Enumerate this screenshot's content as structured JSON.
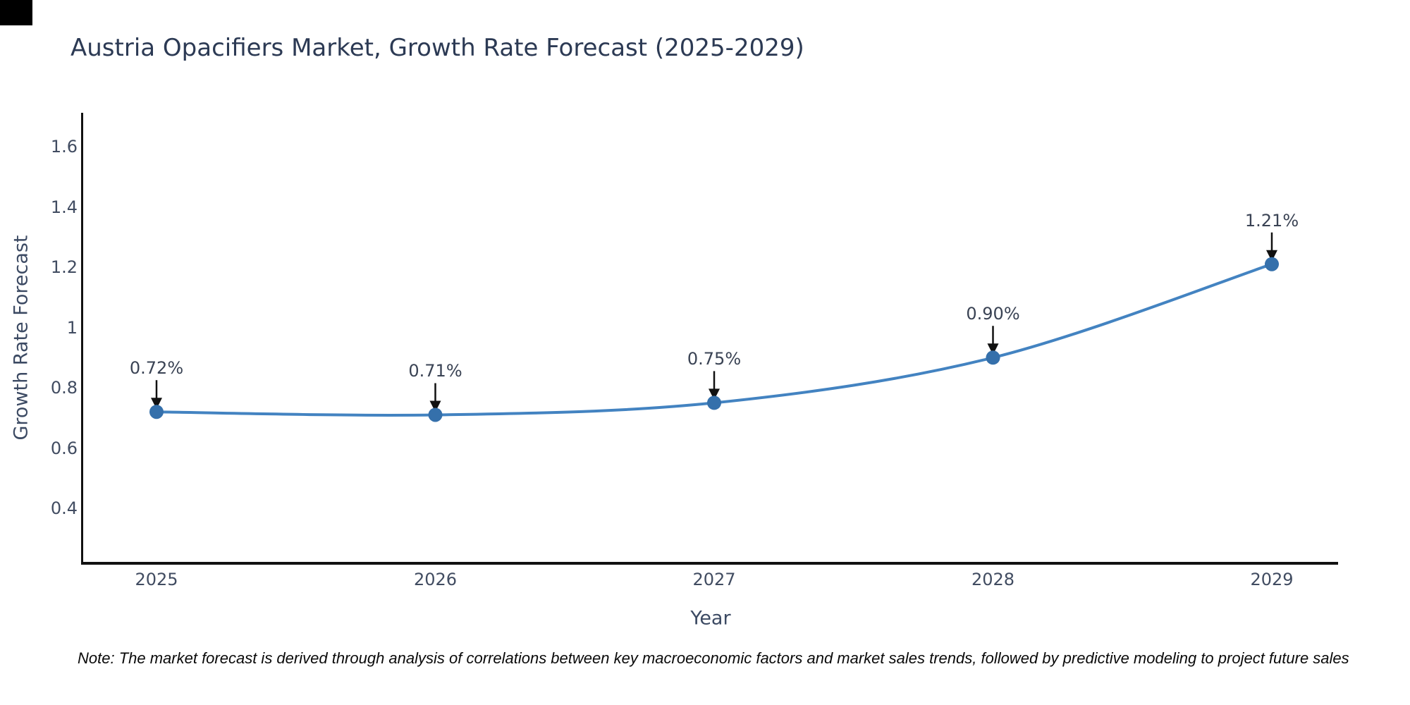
{
  "title": {
    "text": "Austria Opacifiers Market, Growth Rate Forecast (2025-2029)"
  },
  "chart_data": {
    "type": "line",
    "line_shape": "spline",
    "markers": true,
    "grid": false,
    "legend_position": "none",
    "title": "Austria Opacifiers Market, Growth Rate Forecast (2025-2029)",
    "xlabel": "Year",
    "ylabel": "Growth Rate Forecast",
    "x": [
      2025,
      2026,
      2027,
      2028,
      2029
    ],
    "x_labels": [
      "2025",
      "2026",
      "2027",
      "2028",
      "2029"
    ],
    "series": [
      {
        "name": "Growth Rate Forecast",
        "values": [
          0.72,
          0.71,
          0.75,
          0.9,
          1.21
        ],
        "labels": [
          "0.72%",
          "0.71%",
          "0.75%",
          "0.90%",
          "1.21%"
        ]
      }
    ],
    "ylim": [
      0.22,
      1.71
    ],
    "ytick_values": [
      1.6,
      1.4,
      1.2,
      1.0,
      0.8,
      0.6,
      0.4
    ],
    "ytick_labels": [
      "1.6",
      "1.4",
      "1.2",
      "1",
      "0.8",
      "0.6",
      "0.4"
    ]
  },
  "note": {
    "text": "Note: The market forecast is derived through analysis of correlations between key macroeconomic factors and market sales trends, followed by predictive modeling to project future sales"
  },
  "colors": {
    "background": "#ffffff",
    "line": "#4383c1",
    "marker": "#3570ab",
    "axis": "#111111",
    "title_text": "#2c3a54",
    "tick_text": "#414c61",
    "annotation_text": "#3a4354",
    "arrow": "#111111",
    "note_text": "#0a0a0a",
    "corner_artifact": "#000000"
  }
}
